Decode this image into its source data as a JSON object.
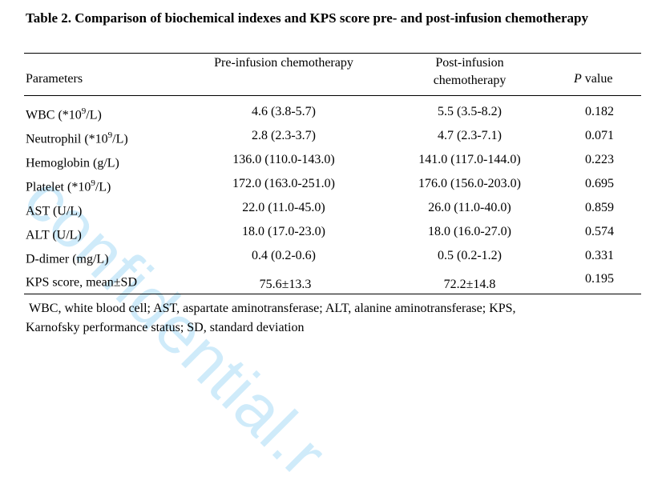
{
  "caption": {
    "line1": "Table 2. Comparison of biochemical indexes and KPS score pre- and post-infusion",
    "line2": "chemotherapy"
  },
  "header": {
    "parameters": "Parameters",
    "pre": "Pre-infusion chemotherapy",
    "post_line1": "Post-infusion",
    "post_line2": "chemotherapy",
    "p_italic": "P",
    "p_rest": " value"
  },
  "rows": [
    {
      "param": "WBC (*10",
      "sup": "9",
      "param_end": "/L)",
      "pre": "4.6 (3.8-5.7)",
      "post": "5.5 (3.5-8.2)",
      "p": "0.182"
    },
    {
      "param": "Neutrophil (*10",
      "sup": "9",
      "param_end": "/L)",
      "pre": "2.8 (2.3-3.7)",
      "post": "4.7 (2.3-7.1)",
      "p": "0.071"
    },
    {
      "param": "Hemoglobin (g/L)",
      "sup": "",
      "param_end": "",
      "pre": "136.0 (110.0-143.0)",
      "post": "141.0 (117.0-144.0)",
      "p": "0.223"
    },
    {
      "param": "Platelet (*10",
      "sup": "9",
      "param_end": "/L)",
      "pre": "172.0 (163.0-251.0)",
      "post": "176.0 (156.0-203.0)",
      "p": "0.695"
    },
    {
      "param": "AST (U/L)",
      "sup": "",
      "param_end": "",
      "pre": "22.0 (11.0-45.0)",
      "post": "26.0 (11.0-40.0)",
      "p": "0.859"
    },
    {
      "param": "ALT (U/L)",
      "sup": "",
      "param_end": "",
      "pre": "18.0 (17.0-23.0)",
      "post": "18.0 (16.0-27.0)",
      "p": "0.574"
    },
    {
      "param": "D-dimer (mg/L)",
      "sup": "",
      "param_end": "",
      "pre": "0.4 (0.2-0.6)",
      "post": "0.5 (0.2-1.2)",
      "p": "0.331"
    },
    {
      "param": "KPS score, mean±SD",
      "sup": "",
      "param_end": "",
      "pre": "75.6±13.3",
      "post": "72.2±14.8",
      "p": "0.195"
    }
  ],
  "footnote": {
    "line1": "WBC, white blood cell; AST, aspartate aminotransferase; ALT, alanine aminotransferase; KPS,",
    "line2": "Karnofsky performance status; SD, standard deviation"
  },
  "watermark": "confidential.r"
}
